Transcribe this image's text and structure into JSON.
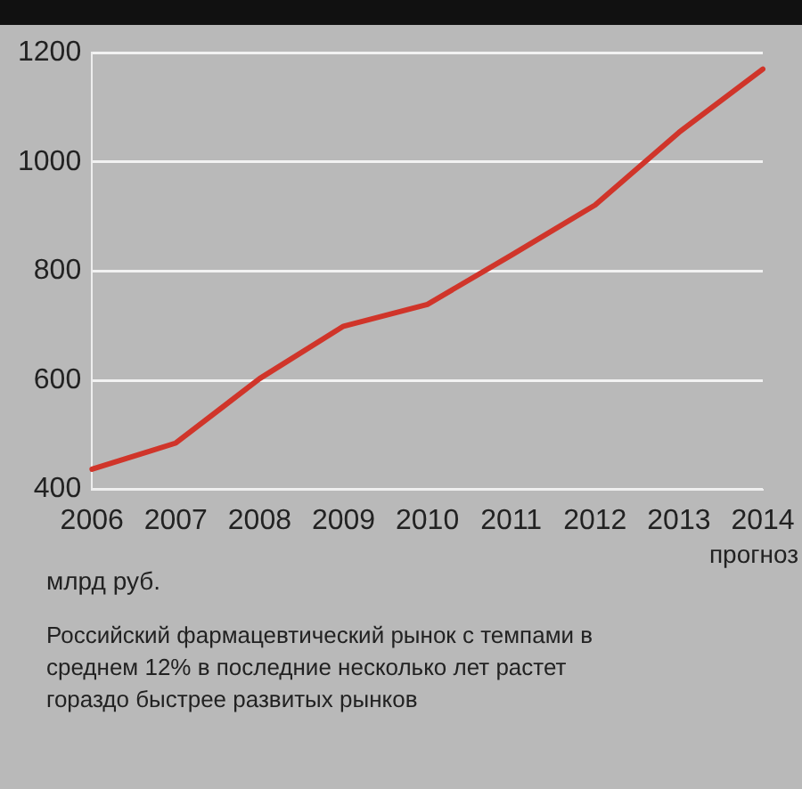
{
  "chart_data": {
    "type": "line",
    "ylabel": "млрд руб.",
    "categories": [
      "2006",
      "2007",
      "2008",
      "2009",
      "2010",
      "2011",
      "2012",
      "2013",
      "2014"
    ],
    "series": [
      {
        "color": "#d0352a",
        "values": [
          437,
          485,
          603,
          699,
          739,
          829,
          921,
          1054,
          1170
        ]
      }
    ],
    "ylim": [
      400,
      1200
    ],
    "yticks": [
      400,
      600,
      800,
      1000,
      1200
    ],
    "grid": "y",
    "legend": false,
    "marker": "none",
    "line_style": "solid",
    "annotations": [
      "прогноз",
      "Российский фармацевтический рынок с темпами в среднем 12% в последние несколько лет растет гораздо быстрее развитых рынков"
    ]
  }
}
